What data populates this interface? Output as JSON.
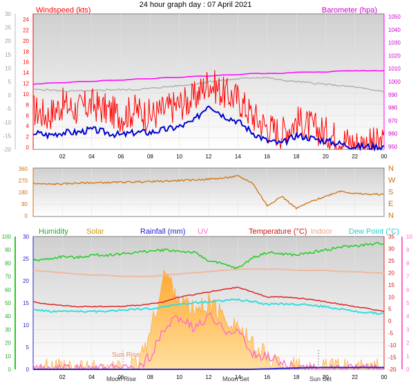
{
  "title": "24 hour graph day : 07 April 2021",
  "x_ticks": [
    "02",
    "04",
    "06",
    "08",
    "10",
    "12",
    "14",
    "16",
    "18",
    "20",
    "22",
    "00"
  ],
  "panel1": {
    "left_label": "Windspeed (kts)",
    "right_label": "Barometer (hpa)",
    "far_left_ticks": [
      "30",
      "25",
      "20",
      "15",
      "10",
      "5",
      "0",
      "-5",
      "-10",
      "-15",
      "-20"
    ],
    "left_ticks": [
      "24",
      "22",
      "20",
      "18",
      "16",
      "14",
      "12",
      "10",
      "8",
      "6",
      "4",
      "2",
      "0"
    ],
    "right_ticks": [
      "1050",
      "1040",
      "1030",
      "1020",
      "1010",
      "1000",
      "990",
      "980",
      "970",
      "960",
      "950"
    ]
  },
  "panel2": {
    "left_ticks": [
      "360",
      "270",
      "180",
      "90",
      "0"
    ],
    "compass": [
      "N",
      "W",
      "S",
      "E",
      "N"
    ]
  },
  "panel3": {
    "legend": {
      "humidity": "Humidity",
      "solar": "Solar",
      "rainfall": "Rainfall (mm)",
      "uv": "UV",
      "temperature": "Temperature (°C)",
      "indoor": "Indoor",
      "dewpoint": "Dew Point (°C)"
    },
    "humidity_ticks": [
      "100",
      "90",
      "80",
      "70",
      "60",
      "50",
      "40",
      "30",
      "20",
      "10",
      "0"
    ],
    "solar_ticks": [
      "30",
      "25",
      "20",
      "15",
      "10",
      "5",
      "0"
    ],
    "right_ticks": [
      "35",
      "30",
      "25",
      "20",
      "15",
      "10",
      "5",
      "0",
      "-5",
      "-10",
      "-15",
      "-20"
    ],
    "uv_ticks": [
      "10",
      "9",
      "8",
      "7",
      "6",
      "5",
      "4",
      "3",
      "2",
      "1",
      "0"
    ],
    "event_labels": {
      "sun_rise": "Sun Rise",
      "moon_rise": "Moon Rise",
      "moon_set": "Moon Set",
      "sun_set": "Sun Set"
    }
  },
  "colors": {
    "windspeed": "#ff0000",
    "windavg": "#0000cc",
    "barometer": "#ff00ff",
    "gust_gray": "#b0b0b0",
    "direction": "#d07010",
    "humidity": "#22cc22",
    "solar": "#ffcc66",
    "rainfall": "#2020cc",
    "uv": "#ff66cc",
    "temperature": "#dd2222",
    "indoor": "#f0b8a0",
    "dewpoint": "#33dddd"
  },
  "chart_data": [
    {
      "type": "line",
      "title": "24 hour graph day : 07 April 2021",
      "ylabel": "Windspeed (kts)",
      "ylim": [
        0,
        24
      ],
      "y2label": "Barometer (hpa)",
      "y2lim": [
        950,
        1050
      ],
      "x": [
        0,
        1,
        2,
        3,
        4,
        5,
        6,
        7,
        8,
        9,
        10,
        11,
        12,
        13,
        14,
        15,
        16,
        17,
        18,
        19,
        20,
        21,
        22,
        23,
        24
      ],
      "series": [
        {
          "name": "Windspeed",
          "axis": "left",
          "values": [
            7,
            6,
            8,
            7,
            8,
            7,
            6,
            7,
            6,
            7,
            8,
            9,
            12,
            10,
            9,
            6,
            4,
            3,
            5,
            4,
            3,
            2,
            1,
            1,
            1
          ]
        },
        {
          "name": "Wind avg",
          "axis": "left",
          "values": [
            3,
            2.5,
            3,
            3,
            3.5,
            3,
            2.5,
            3,
            3,
            3.5,
            4,
            5,
            8,
            6,
            5,
            3,
            1.5,
            1,
            2.5,
            2,
            1.5,
            1,
            0.5,
            0.5,
            0.5
          ]
        },
        {
          "name": "Barometer",
          "axis": "right",
          "values": [
            998,
            999,
            999,
            1000,
            1000,
            1001,
            1001,
            1002,
            1002,
            1003,
            1003,
            1004,
            1004,
            1005,
            1005,
            1006,
            1006,
            1006,
            1007,
            1007,
            1007,
            1008,
            1008,
            1008,
            1008
          ]
        }
      ]
    },
    {
      "type": "line",
      "ylim": [
        0,
        360
      ],
      "x": [
        0,
        1,
        2,
        3,
        4,
        5,
        6,
        7,
        8,
        9,
        10,
        11,
        12,
        13,
        14,
        15,
        16,
        17,
        18,
        19,
        20,
        21,
        22,
        23,
        24
      ],
      "series": [
        {
          "name": "Wind direction",
          "values": [
            245,
            240,
            242,
            248,
            250,
            252,
            255,
            258,
            260,
            262,
            268,
            272,
            278,
            285,
            300,
            250,
            80,
            150,
            60,
            110,
            150,
            190,
            170,
            165,
            165
          ]
        }
      ]
    },
    {
      "type": "line",
      "xlim": [
        0,
        24
      ],
      "series": [
        {
          "name": "Humidity",
          "axis": "humidity",
          "values": [
            82,
            83,
            85,
            84,
            86,
            86,
            87,
            88,
            89,
            90,
            89,
            88,
            82,
            79,
            76,
            84,
            88,
            87,
            86,
            88,
            90,
            92,
            93,
            94,
            95
          ]
        },
        {
          "name": "Temperature (°C)",
          "axis": "temperature",
          "values": [
            8,
            7,
            6.5,
            6,
            6,
            6,
            6,
            6.5,
            7,
            8,
            10,
            11,
            12,
            13,
            14,
            12,
            10,
            10,
            9.5,
            9,
            8,
            7,
            6,
            5,
            4
          ]
        },
        {
          "name": "Dew Point (°C)",
          "axis": "temperature",
          "values": [
            5,
            4,
            4,
            4,
            4,
            4,
            4.5,
            5,
            5,
            6,
            7,
            7.5,
            8,
            8.5,
            9,
            8,
            7,
            7,
            7,
            6.5,
            6,
            5,
            4,
            3.5,
            3
          ]
        },
        {
          "name": "Indoor",
          "axis": "temperature",
          "values": [
            21,
            20.5,
            20,
            19.5,
            19,
            19,
            18.5,
            18.5,
            18.5,
            19,
            19.5,
            20,
            20.5,
            21,
            21.5,
            21.5,
            21.5,
            21.5,
            21,
            21,
            21,
            20.5,
            20.5,
            20,
            20
          ]
        },
        {
          "name": "Solar",
          "axis": "solar",
          "values": [
            0,
            0,
            0,
            0,
            0,
            0,
            0,
            0.5,
            8,
            22,
            16,
            13,
            15,
            12,
            10,
            5,
            3,
            1,
            0.5,
            0,
            0,
            0,
            0,
            0,
            0
          ]
        },
        {
          "name": "UV",
          "axis": "uv",
          "values": [
            0,
            0,
            0,
            0,
            0,
            0,
            0,
            0,
            1,
            3,
            4,
            3,
            4,
            3,
            3,
            1,
            1,
            0.5,
            0,
            0,
            0,
            0,
            0,
            0,
            0
          ]
        },
        {
          "name": "Rainfall (mm)",
          "axis": "solar",
          "values": [
            0,
            0,
            0,
            0,
            0,
            0,
            0,
            0,
            0,
            0,
            0,
            0,
            0,
            0,
            0,
            0,
            0.1,
            0.2,
            0.3,
            0.4,
            0.4,
            0.4,
            0.4,
            0.4,
            0.4
          ]
        }
      ]
    }
  ]
}
